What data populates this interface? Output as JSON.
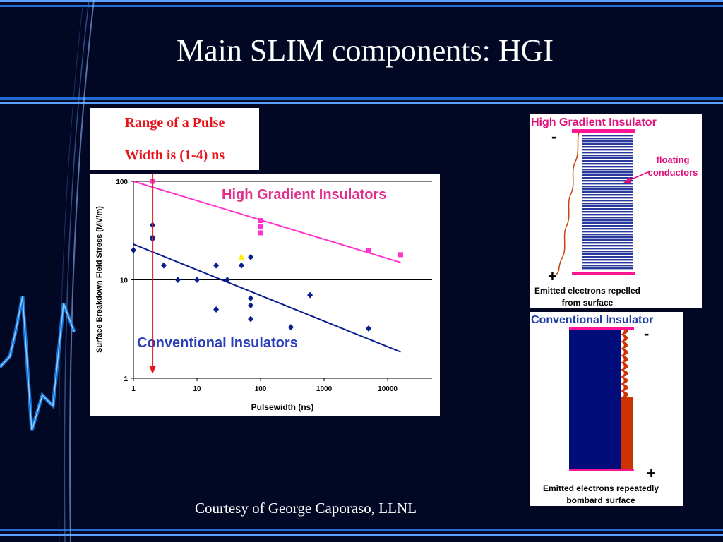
{
  "slide": {
    "title": "Main SLIM components: HGI",
    "callout": {
      "line1": "Range of a Pulse",
      "line2": "Width is (1-4) ns"
    },
    "courtesy": "Courtesy of George Caporaso, LLNL"
  },
  "chart_data": {
    "type": "scatter",
    "xlabel": "Pulsewidth (ns)",
    "ylabel": "Surface Breakdown Field Stress (MV/m)",
    "x_scale": "log",
    "y_scale": "log",
    "xlim": [
      1,
      50000
    ],
    "ylim": [
      1,
      100
    ],
    "x_ticks": [
      "1",
      "10",
      "100",
      "1000",
      "10000"
    ],
    "y_ticks": [
      "1",
      "10",
      "100"
    ],
    "grid": "horizontal",
    "series": [
      {
        "name": "High Gradient Insulators",
        "color": "#ff33cc",
        "marker": "square",
        "points": [
          [
            2,
            100
          ],
          [
            100,
            40
          ],
          [
            100,
            35
          ],
          [
            100,
            30
          ],
          [
            5000,
            20
          ],
          [
            16000,
            18
          ]
        ],
        "trend": [
          [
            1,
            100
          ],
          [
            16000,
            15
          ]
        ]
      },
      {
        "name": "Conventional Insulators",
        "color": "#0a1f8f",
        "marker": "diamond",
        "points": [
          [
            1,
            20
          ],
          [
            2,
            36
          ],
          [
            2,
            27
          ],
          [
            2,
            26
          ],
          [
            3,
            14
          ],
          [
            5,
            10
          ],
          [
            10,
            10
          ],
          [
            20,
            14
          ],
          [
            20,
            5
          ],
          [
            30,
            10
          ],
          [
            50,
            14
          ],
          [
            70,
            17
          ],
          [
            70,
            6.5
          ],
          [
            70,
            5.5
          ],
          [
            70,
            4
          ],
          [
            300,
            3.3
          ],
          [
            600,
            7
          ],
          [
            5000,
            3.2
          ]
        ],
        "trend": [
          [
            1,
            23
          ],
          [
            16000,
            1.85
          ]
        ]
      },
      {
        "color": "#ffee00",
        "marker": "triangle",
        "points": [
          [
            50,
            17
          ]
        ]
      }
    ],
    "annotation": {
      "type": "vertical-arrow",
      "x": 2,
      "color": "#e8141c"
    }
  },
  "hgi_diagram": {
    "title": "High Gradient Insulator",
    "minus": "-",
    "plus": "+",
    "label_line1": "floating",
    "label_line2": "conductors",
    "caption_line1": "Emitted electrons repelled",
    "caption_line2": "from surface",
    "colors": {
      "title": "#e0107a",
      "stripes": "#2a3a9c",
      "electrodes": "#ff1493",
      "trajectory": "#c8440f"
    }
  },
  "ci_diagram": {
    "title": "Conventional Insulator",
    "minus": "-",
    "plus": "+",
    "caption_line1": "Emitted electrons repeatedly",
    "caption_line2": "bombard surface",
    "colors": {
      "title": "#1f3fa8",
      "block": "#000c7a",
      "electrodes": "#ff1493",
      "trajectory": "#cc3300"
    }
  },
  "theme": {
    "background": "#020824",
    "band": "#1e6bd6",
    "wave": "#1a8fff"
  }
}
